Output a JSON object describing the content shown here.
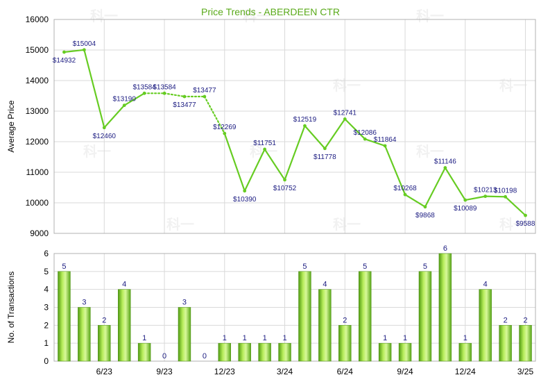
{
  "colors": {
    "title": "#5aaa1a",
    "line": "#66cc22",
    "bar_light": "#c8f07a",
    "bar_dark": "#5aa818",
    "grid": "#d9d9d9",
    "frame": "#b0b0b0",
    "label": "#1a1a80"
  },
  "watermark": "科一",
  "chart_data": [
    {
      "type": "line",
      "title": "Price Trends - ABERDEEN CTR",
      "ylabel": "Average Price",
      "ylim": [
        9000,
        16000
      ],
      "yticks": [
        9000,
        10000,
        11000,
        12000,
        13000,
        14000,
        15000,
        16000
      ],
      "series": [
        {
          "values": [
            14932,
            15004,
            12460,
            13190,
            13584,
            13584,
            13477,
            13477,
            12269,
            10390,
            11751,
            10752,
            12519,
            11778,
            12741,
            12086,
            11864,
            10268,
            9868,
            11146,
            10089,
            10213,
            10198,
            9588
          ],
          "labels": [
            "$14932",
            "$15004",
            "$12460",
            "$13190",
            "$13584",
            "$13584",
            "$13477",
            "$13477",
            "$12269",
            "$10390",
            "$11751",
            "$10752",
            "$12519",
            "$11778",
            "$12741",
            "$12086",
            "$11864",
            "$10268",
            "$9868",
            "$11146",
            "$10089",
            "$10213",
            "$10198",
            "$9588"
          ]
        }
      ]
    },
    {
      "type": "bar",
      "ylabel": "No. of Transactions",
      "ylim": [
        0,
        6
      ],
      "yticks": [
        0,
        1,
        2,
        3,
        4,
        5,
        6
      ],
      "x_tick_labels": [
        "6/23",
        "9/23",
        "12/23",
        "3/24",
        "6/24",
        "9/24",
        "12/24",
        "3/25"
      ],
      "series": [
        {
          "values": [
            5,
            3,
            2,
            4,
            1,
            0,
            3,
            0,
            1,
            1,
            1,
            1,
            5,
            4,
            2,
            5,
            1,
            1,
            5,
            6,
            1,
            4,
            2,
            2
          ]
        }
      ]
    }
  ]
}
